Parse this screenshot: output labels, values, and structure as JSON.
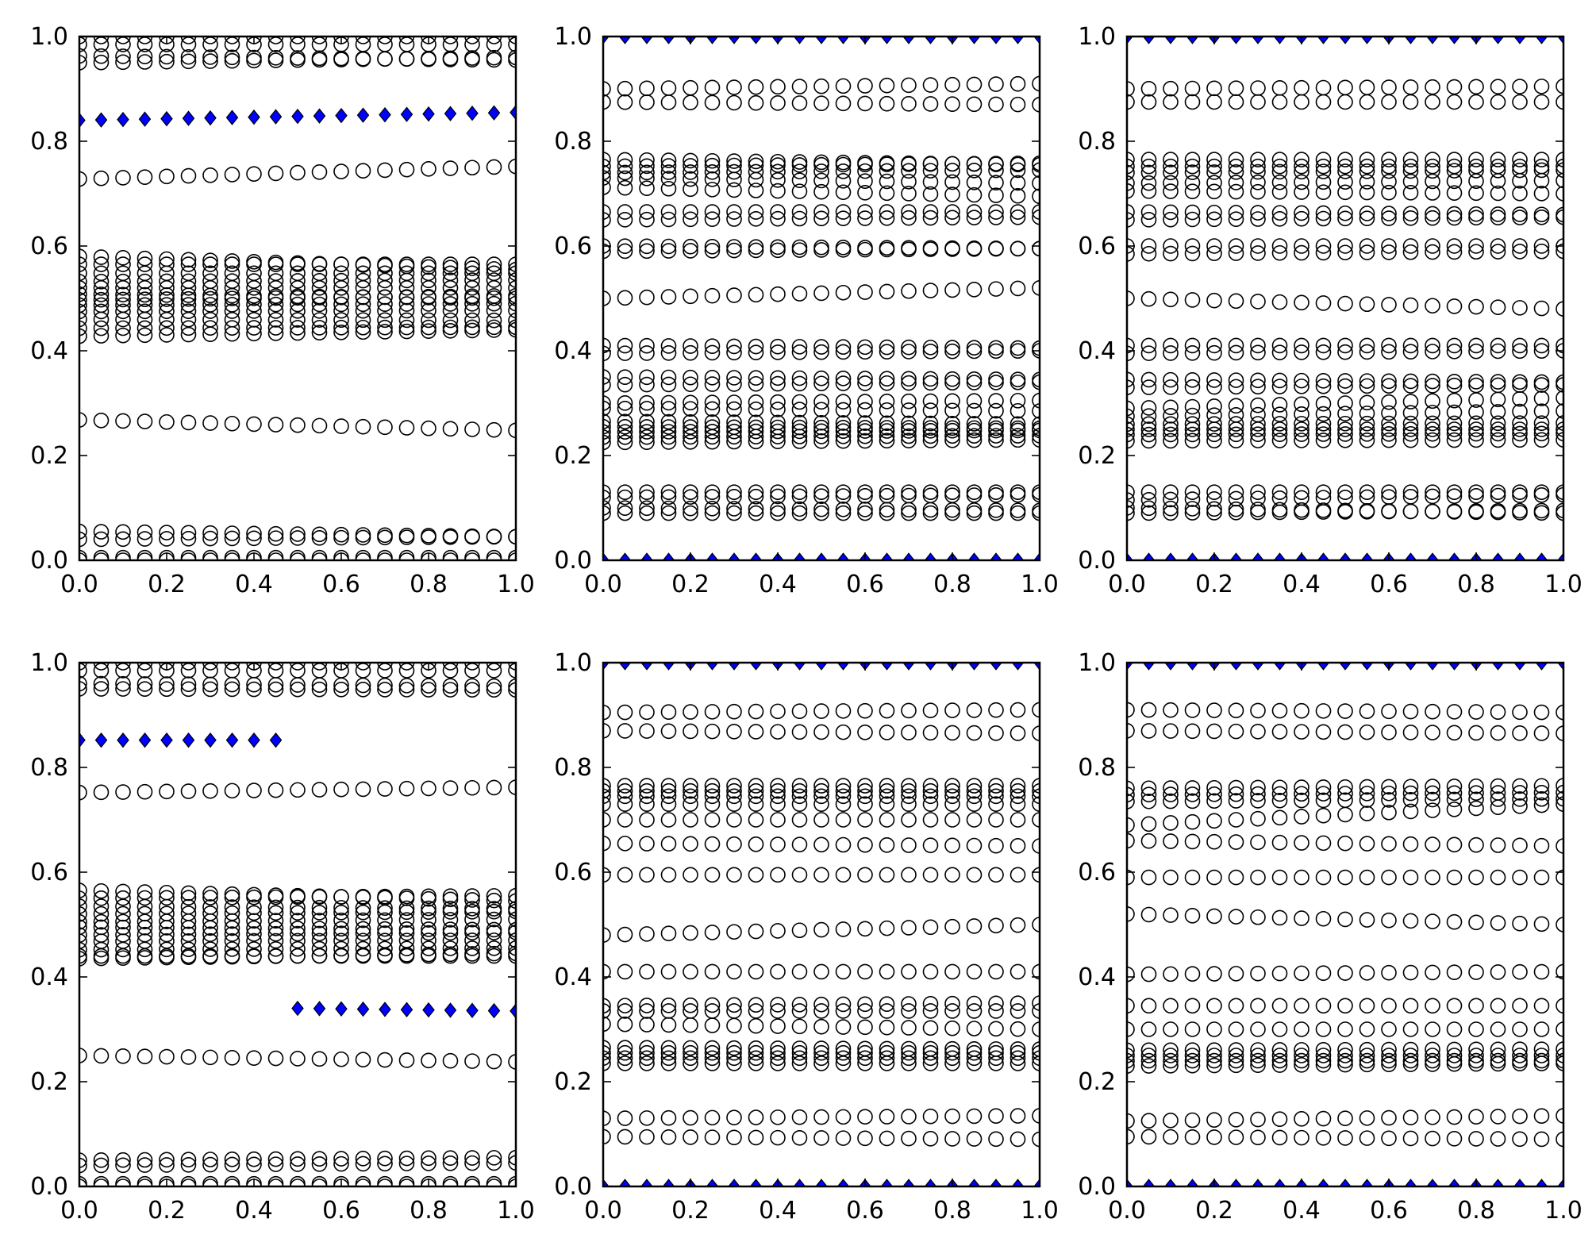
{
  "figure": {
    "layout": "2x3 grid of scatter subplots",
    "circle_marker": "open-circle",
    "diamond_marker": "filled-diamond",
    "circle_color": "#000000",
    "diamond_color": "#0000ff"
  },
  "chart_data": [
    {
      "type": "scatter",
      "title": "",
      "xlabel": "",
      "ylabel": "",
      "grid": false,
      "xlim": [
        0,
        1
      ],
      "ylim": [
        0,
        1
      ],
      "xticks": [
        "0.0",
        "0.2",
        "0.4",
        "0.6",
        "0.8",
        "1.0"
      ],
      "yticks": [
        "0.0",
        "0.2",
        "0.4",
        "0.6",
        "0.8",
        "1.0"
      ],
      "x": [
        0.0,
        0.05,
        0.1,
        0.15,
        0.2,
        0.25,
        0.3,
        0.35,
        0.4,
        0.45,
        0.5,
        0.55,
        0.6,
        0.65,
        0.7,
        0.75,
        0.8,
        0.85,
        0.9,
        0.95,
        1.0
      ],
      "circle_tracks": [
        {
          "y0": 1.0,
          "y1": 1.0
        },
        {
          "y0": 0.985,
          "y1": 0.985
        },
        {
          "y0": 0.963,
          "y1": 0.955
        },
        {
          "y0": 0.95,
          "y1": 0.96
        },
        {
          "y0": 0.728,
          "y1": 0.752
        },
        {
          "y0": 0.58,
          "y1": 0.555
        },
        {
          "y0": 0.565,
          "y1": 0.565
        },
        {
          "y0": 0.548,
          "y1": 0.548
        },
        {
          "y0": 0.532,
          "y1": 0.535
        },
        {
          "y0": 0.52,
          "y1": 0.52
        },
        {
          "y0": 0.508,
          "y1": 0.5
        },
        {
          "y0": 0.497,
          "y1": 0.505
        },
        {
          "y0": 0.487,
          "y1": 0.49
        },
        {
          "y0": 0.475,
          "y1": 0.477
        },
        {
          "y0": 0.46,
          "y1": 0.458
        },
        {
          "y0": 0.443,
          "y1": 0.445
        },
        {
          "y0": 0.428,
          "y1": 0.44
        },
        {
          "y0": 0.268,
          "y1": 0.248
        },
        {
          "y0": 0.055,
          "y1": 0.045
        },
        {
          "y0": 0.04,
          "y1": 0.045
        },
        {
          "y0": 0.005,
          "y1": 0.005
        },
        {
          "y0": 0.0,
          "y1": 0.0
        }
      ],
      "diamond_tracks": [
        {
          "y0": 0.84,
          "y1": 0.855
        }
      ]
    },
    {
      "type": "scatter",
      "title": "",
      "xlabel": "",
      "ylabel": "",
      "grid": false,
      "xlim": [
        0,
        1
      ],
      "ylim": [
        0,
        1
      ],
      "xticks": [
        "0.0",
        "0.2",
        "0.4",
        "0.6",
        "0.8",
        "1.0"
      ],
      "yticks": [
        "0.0",
        "0.2",
        "0.4",
        "0.6",
        "0.8",
        "1.0"
      ],
      "x": [
        0.0,
        0.05,
        0.1,
        0.15,
        0.2,
        0.25,
        0.3,
        0.35,
        0.4,
        0.45,
        0.5,
        0.55,
        0.6,
        0.65,
        0.7,
        0.75,
        0.8,
        0.85,
        0.9,
        0.95,
        1.0
      ],
      "circle_tracks": [
        {
          "y0": 0.9,
          "y1": 0.91
        },
        {
          "y0": 0.875,
          "y1": 0.87
        },
        {
          "y0": 0.765,
          "y1": 0.755
        },
        {
          "y0": 0.752,
          "y1": 0.758
        },
        {
          "y0": 0.74,
          "y1": 0.745
        },
        {
          "y0": 0.73,
          "y1": 0.72
        },
        {
          "y0": 0.712,
          "y1": 0.695
        },
        {
          "y0": 0.665,
          "y1": 0.665
        },
        {
          "y0": 0.65,
          "y1": 0.655
        },
        {
          "y0": 0.6,
          "y1": 0.595
        },
        {
          "y0": 0.59,
          "y1": 0.595
        },
        {
          "y0": 0.5,
          "y1": 0.52
        },
        {
          "y0": 0.41,
          "y1": 0.405
        },
        {
          "y0": 0.395,
          "y1": 0.4
        },
        {
          "y0": 0.35,
          "y1": 0.345
        },
        {
          "y0": 0.335,
          "y1": 0.34
        },
        {
          "y0": 0.3,
          "y1": 0.305
        },
        {
          "y0": 0.29,
          "y1": 0.285
        },
        {
          "y0": 0.265,
          "y1": 0.26
        },
        {
          "y0": 0.255,
          "y1": 0.252
        },
        {
          "y0": 0.245,
          "y1": 0.248
        },
        {
          "y0": 0.235,
          "y1": 0.238
        },
        {
          "y0": 0.225,
          "y1": 0.23
        },
        {
          "y0": 0.13,
          "y1": 0.13
        },
        {
          "y0": 0.12,
          "y1": 0.125
        },
        {
          "y0": 0.1,
          "y1": 0.095
        },
        {
          "y0": 0.09,
          "y1": 0.09
        }
      ],
      "diamond_tracks": [
        {
          "y0": 1.0,
          "y1": 1.0
        },
        {
          "y0": 0.0,
          "y1": 0.0
        }
      ]
    },
    {
      "type": "scatter",
      "title": "",
      "xlabel": "",
      "ylabel": "",
      "grid": false,
      "xlim": [
        0,
        1
      ],
      "ylim": [
        0,
        1
      ],
      "xticks": [
        "0.0",
        "0.2",
        "0.4",
        "0.6",
        "0.8",
        "1.0"
      ],
      "yticks": [
        "0.0",
        "0.2",
        "0.4",
        "0.6",
        "0.8",
        "1.0"
      ],
      "x": [
        0.0,
        0.05,
        0.1,
        0.15,
        0.2,
        0.25,
        0.3,
        0.35,
        0.4,
        0.45,
        0.5,
        0.55,
        0.6,
        0.65,
        0.7,
        0.75,
        0.8,
        0.85,
        0.9,
        0.95,
        1.0
      ],
      "circle_tracks": [
        {
          "y0": 0.9,
          "y1": 0.905
        },
        {
          "y0": 0.875,
          "y1": 0.875
        },
        {
          "y0": 0.765,
          "y1": 0.765
        },
        {
          "y0": 0.752,
          "y1": 0.752
        },
        {
          "y0": 0.74,
          "y1": 0.745
        },
        {
          "y0": 0.72,
          "y1": 0.725
        },
        {
          "y0": 0.705,
          "y1": 0.7
        },
        {
          "y0": 0.665,
          "y1": 0.66
        },
        {
          "y0": 0.65,
          "y1": 0.655
        },
        {
          "y0": 0.6,
          "y1": 0.6
        },
        {
          "y0": 0.585,
          "y1": 0.59
        },
        {
          "y0": 0.5,
          "y1": 0.48
        },
        {
          "y0": 0.41,
          "y1": 0.41
        },
        {
          "y0": 0.395,
          "y1": 0.4
        },
        {
          "y0": 0.345,
          "y1": 0.34
        },
        {
          "y0": 0.33,
          "y1": 0.335
        },
        {
          "y0": 0.29,
          "y1": 0.31
        },
        {
          "y0": 0.275,
          "y1": 0.285
        },
        {
          "y0": 0.26,
          "y1": 0.262
        },
        {
          "y0": 0.25,
          "y1": 0.25
        },
        {
          "y0": 0.24,
          "y1": 0.242
        },
        {
          "y0": 0.228,
          "y1": 0.23
        },
        {
          "y0": 0.13,
          "y1": 0.13
        },
        {
          "y0": 0.115,
          "y1": 0.125
        },
        {
          "y0": 0.1,
          "y1": 0.09
        },
        {
          "y0": 0.09,
          "y1": 0.095
        }
      ],
      "diamond_tracks": [
        {
          "y0": 1.0,
          "y1": 1.0
        },
        {
          "y0": 0.0,
          "y1": 0.0
        }
      ]
    },
    {
      "type": "scatter",
      "title": "",
      "xlabel": "",
      "ylabel": "",
      "grid": false,
      "xlim": [
        0,
        1
      ],
      "ylim": [
        0,
        1
      ],
      "xticks": [
        "0.0",
        "0.2",
        "0.4",
        "0.6",
        "0.8",
        "1.0"
      ],
      "yticks": [
        "0.0",
        "0.2",
        "0.4",
        "0.6",
        "0.8",
        "1.0"
      ],
      "x": [
        0.0,
        0.05,
        0.1,
        0.15,
        0.2,
        0.25,
        0.3,
        0.35,
        0.4,
        0.45,
        0.5,
        0.55,
        0.6,
        0.65,
        0.7,
        0.75,
        0.8,
        0.85,
        0.9,
        0.95,
        1.0
      ],
      "circle_tracks": [
        {
          "y0": 1.0,
          "y1": 1.0
        },
        {
          "y0": 0.985,
          "y1": 0.985
        },
        {
          "y0": 0.96,
          "y1": 0.955
        },
        {
          "y0": 0.95,
          "y1": 0.948
        },
        {
          "y0": 0.752,
          "y1": 0.762
        },
        {
          "y0": 0.565,
          "y1": 0.545
        },
        {
          "y0": 0.55,
          "y1": 0.555
        },
        {
          "y0": 0.535,
          "y1": 0.53
        },
        {
          "y0": 0.52,
          "y1": 0.525
        },
        {
          "y0": 0.505,
          "y1": 0.51
        },
        {
          "y0": 0.495,
          "y1": 0.49
        },
        {
          "y0": 0.48,
          "y1": 0.485
        },
        {
          "y0": 0.468,
          "y1": 0.47
        },
        {
          "y0": 0.452,
          "y1": 0.455
        },
        {
          "y0": 0.44,
          "y1": 0.44
        },
        {
          "y0": 0.435,
          "y1": 0.445
        },
        {
          "y0": 0.25,
          "y1": 0.238
        },
        {
          "y0": 0.05,
          "y1": 0.055
        },
        {
          "y0": 0.04,
          "y1": 0.045
        },
        {
          "y0": 0.005,
          "y1": 0.005
        },
        {
          "y0": 0.0,
          "y1": 0.0
        }
      ],
      "diamond_tracks": [
        {
          "x0": 0.0,
          "x1": 0.45,
          "y0": 0.852,
          "y1": 0.852
        },
        {
          "x0": 0.5,
          "x1": 1.0,
          "y0": 0.34,
          "y1": 0.335
        }
      ]
    },
    {
      "type": "scatter",
      "title": "",
      "xlabel": "",
      "ylabel": "",
      "grid": false,
      "xlim": [
        0,
        1
      ],
      "ylim": [
        0,
        1
      ],
      "xticks": [
        "0.0",
        "0.2",
        "0.4",
        "0.6",
        "0.8",
        "1.0"
      ],
      "yticks": [
        "0.0",
        "0.2",
        "0.4",
        "0.6",
        "0.8",
        "1.0"
      ],
      "x": [
        0.0,
        0.05,
        0.1,
        0.15,
        0.2,
        0.25,
        0.3,
        0.35,
        0.4,
        0.45,
        0.5,
        0.55,
        0.6,
        0.65,
        0.7,
        0.75,
        0.8,
        0.85,
        0.9,
        0.95,
        1.0
      ],
      "circle_tracks": [
        {
          "y0": 0.905,
          "y1": 0.91
        },
        {
          "y0": 0.87,
          "y1": 0.865
        },
        {
          "y0": 0.765,
          "y1": 0.765
        },
        {
          "y0": 0.755,
          "y1": 0.755
        },
        {
          "y0": 0.745,
          "y1": 0.745
        },
        {
          "y0": 0.73,
          "y1": 0.73
        },
        {
          "y0": 0.7,
          "y1": 0.7
        },
        {
          "y0": 0.655,
          "y1": 0.65
        },
        {
          "y0": 0.595,
          "y1": 0.595
        },
        {
          "y0": 0.48,
          "y1": 0.5
        },
        {
          "y0": 0.41,
          "y1": 0.41
        },
        {
          "y0": 0.345,
          "y1": 0.35
        },
        {
          "y0": 0.335,
          "y1": 0.335
        },
        {
          "y0": 0.31,
          "y1": 0.3
        },
        {
          "y0": 0.265,
          "y1": 0.262
        },
        {
          "y0": 0.255,
          "y1": 0.255
        },
        {
          "y0": 0.245,
          "y1": 0.245
        },
        {
          "y0": 0.235,
          "y1": 0.235
        },
        {
          "y0": 0.13,
          "y1": 0.135
        },
        {
          "y0": 0.095,
          "y1": 0.09
        }
      ],
      "diamond_tracks": [
        {
          "y0": 1.0,
          "y1": 1.0
        },
        {
          "y0": 0.0,
          "y1": 0.0
        }
      ]
    },
    {
      "type": "scatter",
      "title": "",
      "xlabel": "",
      "ylabel": "",
      "grid": false,
      "xlim": [
        0,
        1
      ],
      "ylim": [
        0,
        1
      ],
      "xticks": [
        "0.0",
        "0.2",
        "0.4",
        "0.6",
        "0.8",
        "1.0"
      ],
      "yticks": [
        "0.0",
        "0.2",
        "0.4",
        "0.6",
        "0.8",
        "1.0"
      ],
      "x": [
        0.0,
        0.05,
        0.1,
        0.15,
        0.2,
        0.25,
        0.3,
        0.35,
        0.4,
        0.45,
        0.5,
        0.55,
        0.6,
        0.65,
        0.7,
        0.75,
        0.8,
        0.85,
        0.9,
        0.95,
        1.0
      ],
      "circle_tracks": [
        {
          "y0": 0.91,
          "y1": 0.905
        },
        {
          "y0": 0.87,
          "y1": 0.865
        },
        {
          "y0": 0.76,
          "y1": 0.765
        },
        {
          "y0": 0.748,
          "y1": 0.752
        },
        {
          "y0": 0.735,
          "y1": 0.74
        },
        {
          "y0": 0.69,
          "y1": 0.73
        },
        {
          "y0": 0.66,
          "y1": 0.65
        },
        {
          "y0": 0.59,
          "y1": 0.59
        },
        {
          "y0": 0.52,
          "y1": 0.5
        },
        {
          "y0": 0.405,
          "y1": 0.41
        },
        {
          "y0": 0.345,
          "y1": 0.345
        },
        {
          "y0": 0.3,
          "y1": 0.3
        },
        {
          "y0": 0.26,
          "y1": 0.262
        },
        {
          "y0": 0.25,
          "y1": 0.25
        },
        {
          "y0": 0.24,
          "y1": 0.24
        },
        {
          "y0": 0.23,
          "y1": 0.235
        },
        {
          "y0": 0.125,
          "y1": 0.135
        },
        {
          "y0": 0.095,
          "y1": 0.09
        }
      ],
      "diamond_tracks": [
        {
          "y0": 1.0,
          "y1": 1.0
        },
        {
          "y0": 0.0,
          "y1": 0.0
        }
      ]
    }
  ]
}
